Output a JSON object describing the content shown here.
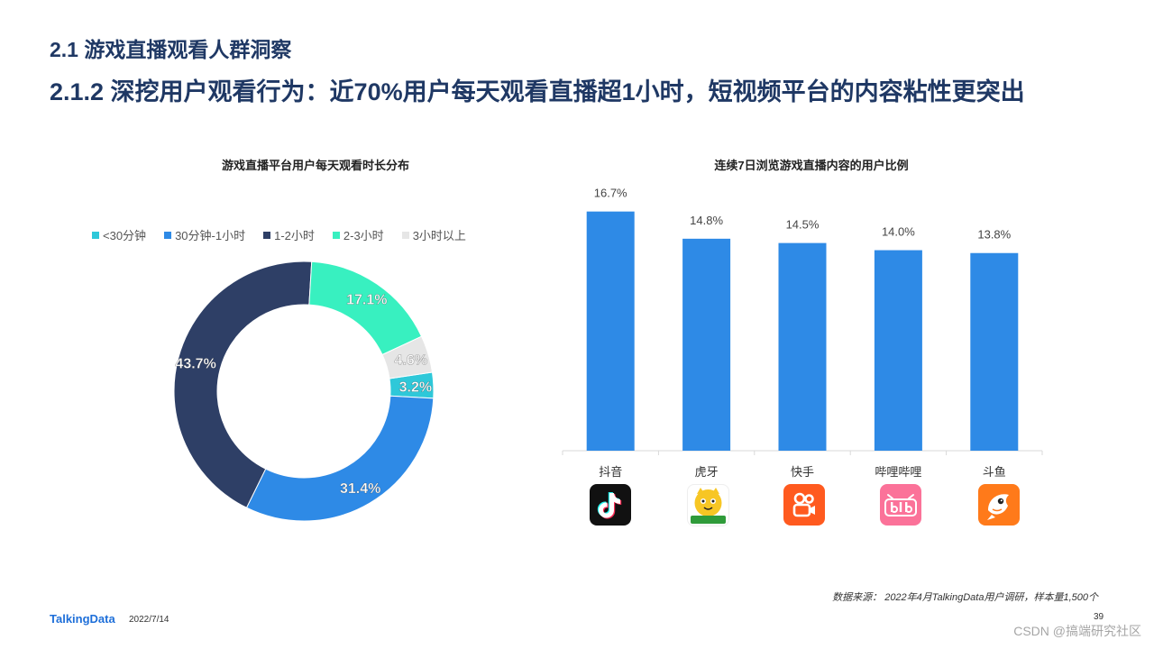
{
  "header": {
    "section_title": "2.1 游戏直播观看人群洞察",
    "subtitle": "2.1.2 深挖用户观看行为：近70%用户每天观看直播超1小时，短视频平台的内容粘性更突出"
  },
  "colors": {
    "title": "#1f3864",
    "bar": "#2e8ae6",
    "donut": [
      "#2ec8d9",
      "#2e8ae6",
      "#2e3f66",
      "#38f0c0",
      "#e6e6e6"
    ]
  },
  "chart_data": [
    {
      "type": "pie",
      "variant": "donut",
      "title": "游戏直播平台用户每天观看时长分布",
      "legend_position": "top",
      "categories": [
        "<30分钟",
        "30分钟-1小时",
        "1-2小时",
        "2-3小时",
        "3小时以上"
      ],
      "values": [
        3.2,
        31.4,
        43.7,
        17.1,
        4.6
      ],
      "labels": [
        "3.2%",
        "31.4%",
        "43.7%",
        "17.1%",
        "4.6%"
      ]
    },
    {
      "type": "bar",
      "title": "连续7日浏览游戏直播内容的用户比例",
      "categories": [
        "抖音",
        "虎牙",
        "快手",
        "哔哩哔哩",
        "斗鱼"
      ],
      "values": [
        16.7,
        14.8,
        14.5,
        14.0,
        13.8
      ],
      "labels": [
        "16.7%",
        "14.8%",
        "14.5%",
        "14.0%",
        "13.8%"
      ],
      "ylim": [
        0,
        18
      ],
      "grid": false
    }
  ],
  "app_icons": [
    {
      "name": "douyin-icon",
      "bg": "#111111"
    },
    {
      "name": "huya-icon",
      "bg": "#f7c624",
      "caption": "看中国军事"
    },
    {
      "name": "kuaishou-icon",
      "bg": "#ff5a1f"
    },
    {
      "name": "bilibili-icon",
      "bg": "#fb7299",
      "text": "bilibili"
    },
    {
      "name": "douyu-icon",
      "bg": "#ff7a1a"
    }
  ],
  "footer": {
    "source": "数据来源： 2022年4月TalkingData用户调研，样本量1,500个",
    "logo": "TalkingData",
    "date": "2022/7/14",
    "page": "39",
    "watermark": "CSDN @搞端研究社区"
  }
}
